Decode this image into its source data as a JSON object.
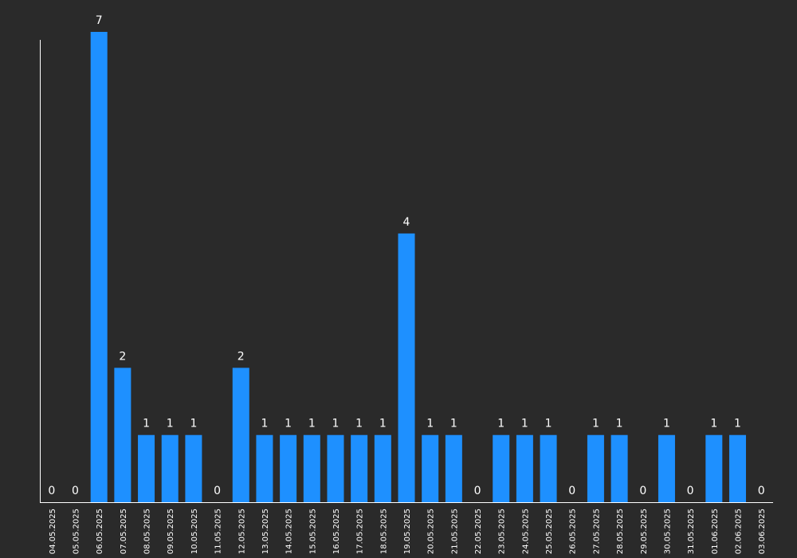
{
  "chart_data": {
    "type": "bar",
    "categories": [
      "04.05.2025",
      "05.05.2025",
      "06.05.2025",
      "07.05.2025",
      "08.05.2025",
      "09.05.2025",
      "10.05.2025",
      "11.05.2025",
      "12.05.2025",
      "13.05.2025",
      "14.05.2025",
      "15.05.2025",
      "16.05.2025",
      "17.05.2025",
      "18.05.2025",
      "19.05.2025",
      "20.05.2025",
      "21.05.2025",
      "22.05.2025",
      "23.05.2025",
      "24.05.2025",
      "25.05.2025",
      "26.05.2025",
      "27.05.2025",
      "28.05.2025",
      "29.05.2025",
      "30.05.2025",
      "31.05.2025",
      "01.06.2025",
      "02.06.2025",
      "03.06.2025"
    ],
    "values": [
      0,
      0,
      7,
      2,
      1,
      1,
      1,
      0,
      2,
      1,
      1,
      1,
      1,
      1,
      1,
      4,
      1,
      1,
      0,
      1,
      1,
      1,
      0,
      1,
      1,
      0,
      1,
      0,
      1,
      1,
      0
    ],
    "title": "",
    "xlabel": "",
    "ylabel": "",
    "ylim": [
      0,
      7
    ],
    "grid": false,
    "data_labels": true
  },
  "colors": {
    "background": "#2a2a2a",
    "bar": "#1e90ff",
    "axis": "#ffffff",
    "text": "#ffffff"
  }
}
